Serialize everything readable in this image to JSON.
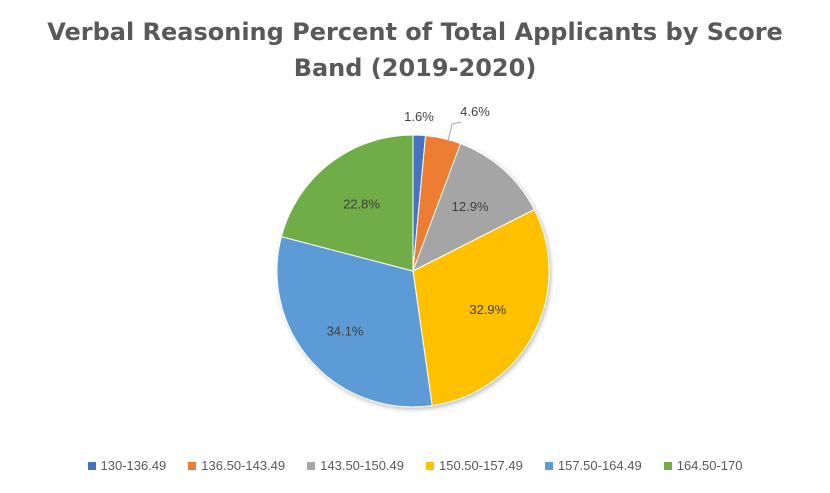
{
  "chart_data": {
    "type": "pie",
    "title_lines": [
      "Verbal Reasoning Percent of Total Applicants by Score",
      "Band (2019-2020)"
    ],
    "categories": [
      "130-136.49",
      "136.50-143.49",
      "143.50-150.49",
      "150.50-157.49",
      "157.50-164.49",
      "164.50-170"
    ],
    "values": [
      1.6,
      4.6,
      12.9,
      32.9,
      34.1,
      22.8
    ],
    "labels": [
      "1.6%",
      "4.6%",
      "12.9%",
      "32.9%",
      "34.1%",
      "22.8%"
    ],
    "colors": [
      "#4472c4",
      "#ed7d31",
      "#a5a5a5",
      "#ffc000",
      "#5b9bd5",
      "#70ad47"
    ],
    "legend_position": "bottom"
  }
}
